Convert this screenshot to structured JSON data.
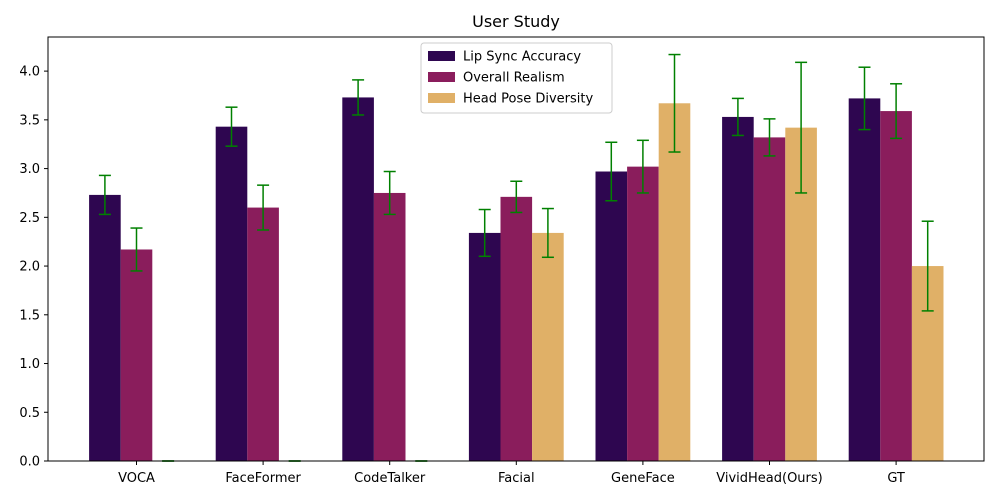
{
  "chart_data": {
    "type": "bar",
    "title": "User Study",
    "xlabel": "",
    "ylabel": "",
    "categories": [
      "VOCA",
      "FaceFormer",
      "CodeTalker",
      "Facial",
      "GeneFace",
      "VividHead(Ours)",
      "GT"
    ],
    "ylim": [
      0,
      4.35
    ],
    "yticks": [
      "0.0",
      "0.5",
      "1.0",
      "1.5",
      "2.0",
      "2.5",
      "3.0",
      "3.5",
      "4.0"
    ],
    "grid": false,
    "legend_position": "top-center",
    "error_bar_color": "#008000",
    "series": [
      {
        "name": "Lip Sync Accuracy",
        "color": "#2e0650",
        "values": [
          2.73,
          3.43,
          3.73,
          2.34,
          2.97,
          3.53,
          3.72
        ],
        "errors": [
          0.2,
          0.2,
          0.18,
          0.24,
          0.3,
          0.19,
          0.32
        ]
      },
      {
        "name": "Overall Realism",
        "color": "#8a1d5c",
        "values": [
          2.17,
          2.6,
          2.75,
          2.71,
          3.02,
          3.32,
          3.59
        ],
        "errors": [
          0.22,
          0.23,
          0.22,
          0.16,
          0.27,
          0.19,
          0.28
        ]
      },
      {
        "name": "Head Pose Diversity",
        "color": "#e0b067",
        "values": [
          0.0,
          0.0,
          0.0,
          2.34,
          3.67,
          3.42,
          2.0
        ],
        "errors": [
          0.0,
          0.0,
          0.0,
          0.25,
          0.5,
          0.67,
          0.46
        ]
      }
    ]
  }
}
